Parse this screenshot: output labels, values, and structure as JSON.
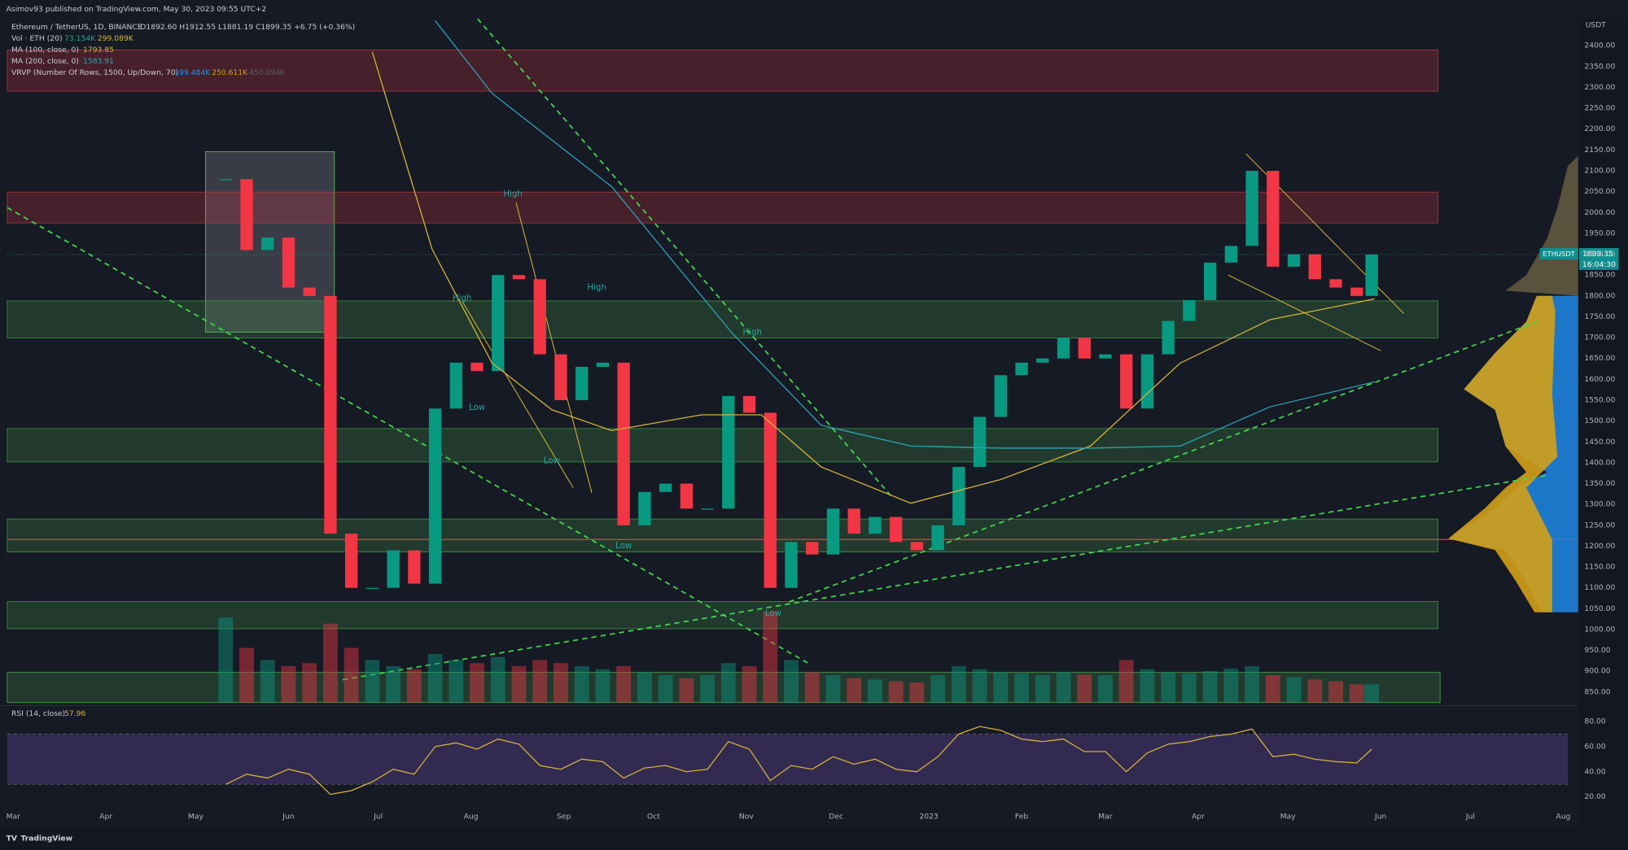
{
  "header": {
    "published": "Asimov93 published on TradingView.com, May 30, 2023 09:55 UTC+2",
    "symbol": "Ethereum / TetherUS, 1D, BINANCE",
    "ohlc": "O1892.60 H1912.55 L1881.19 C1899.35 +6.75 (+0.36%)",
    "vol_name": "Vol · ETH (20)",
    "vol_value": "73.154K",
    "vol_ma": "299.089K",
    "ma100_name": "MA (100, close, 0)",
    "ma100_value": "1793.85",
    "ma200_name": "MA (200, close, 0)",
    "ma200_value": "1583.91",
    "vrvp_name": "VRVP (Number Of Rows, 1500, Up/Down, 70)",
    "vrvp_up": "199.484K",
    "vrvp_down": "250.611K",
    "vrvp_total": "450.094K",
    "currency": "USDT",
    "ticker": "ETHUSDT",
    "countdown": "16:04:30",
    "brand": "TradingView"
  },
  "chart_data": {
    "type": "candlestick",
    "x": [
      71,
      78,
      85,
      92,
      99,
      106,
      113,
      120,
      127,
      134,
      141,
      148,
      155,
      162,
      169,
      176,
      183,
      190,
      197,
      204,
      211,
      218,
      225,
      232,
      239,
      246,
      253,
      260,
      267,
      274,
      281,
      288,
      295,
      302,
      309,
      316,
      323,
      330,
      337,
      344,
      351,
      358,
      365,
      372,
      379,
      386,
      393,
      400,
      407,
      414,
      421,
      428,
      435,
      442,
      449,
      454
    ],
    "close": [
      2080,
      1910,
      1940,
      1820,
      1800,
      1230,
      1100,
      1100,
      1190,
      1110,
      1530,
      1640,
      1620,
      1850,
      1840,
      1660,
      1550,
      1630,
      1640,
      1250,
      1330,
      1350,
      1290,
      1290,
      1560,
      1520,
      1100,
      1210,
      1180,
      1290,
      1230,
      1270,
      1210,
      1190,
      1250,
      1390,
      1510,
      1610,
      1640,
      1650,
      1700,
      1650,
      1660,
      1530,
      1660,
      1740,
      1790,
      1880,
      1920,
      2100,
      1870,
      1900,
      1840,
      1820,
      1800,
      1899.35
    ],
    "volume": [
      1400,
      900,
      700,
      600,
      650,
      1300,
      900,
      700,
      600,
      550,
      800,
      700,
      650,
      750,
      600,
      700,
      650,
      600,
      550,
      600,
      500,
      450,
      400,
      450,
      650,
      600,
      1500,
      700,
      500,
      450,
      400,
      380,
      350,
      330,
      450,
      600,
      550,
      500,
      480,
      450,
      500,
      460,
      450,
      700,
      550,
      500,
      480,
      520,
      560,
      600,
      450,
      420,
      380,
      350,
      300,
      300
    ],
    "up_color": "#089981",
    "down_color": "#f23645",
    "vlim": [
      0,
      2000
    ],
    "series": [
      {
        "name": "MA (100, close, 0)",
        "color": "#d4b53a",
        "x": [
          120,
          140,
          160,
          180,
          200,
          230,
          250,
          270,
          300,
          330,
          360,
          390,
          420,
          455
        ],
        "values": [
          2385,
          1912,
          1639,
          1527,
          1477,
          1515,
          1515,
          1390,
          1303,
          1360,
          1440,
          1639,
          1743,
          1793
        ]
      },
      {
        "name": "MA (200, close, 0)",
        "color": "#2fa3b5",
        "x": [
          141,
          160,
          200,
          240,
          270,
          300,
          330,
          360,
          390,
          420,
          455
        ],
        "values": [
          2460,
          2286,
          2062,
          1713,
          1490,
          1440,
          1435,
          1435,
          1440,
          1534,
          1594
        ]
      }
    ],
    "zones": [
      {
        "low": 2291,
        "high": 2390,
        "color": "red"
      },
      {
        "low": 1975,
        "high": 2049,
        "color": "red"
      },
      {
        "low": 1699,
        "high": 1788,
        "color": "green"
      },
      {
        "low": 1402,
        "high": 1482,
        "color": "green"
      },
      {
        "low": 1186,
        "high": 1265,
        "color": "green"
      },
      {
        "low": 1002,
        "high": 1067,
        "color": "green"
      }
    ],
    "hline": 1216,
    "annotations": [
      {
        "text": "High",
        "x": 150,
        "y": 1795
      },
      {
        "text": "High",
        "x": 167,
        "y": 2044
      },
      {
        "text": "High",
        "x": 195,
        "y": 1820
      },
      {
        "text": "High",
        "x": 247,
        "y": 1713
      },
      {
        "text": "Low",
        "x": 155,
        "y": 1532
      },
      {
        "text": "Low",
        "x": 180,
        "y": 1405
      },
      {
        "text": "Low",
        "x": 204,
        "y": 1201
      },
      {
        "text": "Low",
        "x": 254,
        "y": 1039
      }
    ],
    "xlim": [
      -2,
      523
    ],
    "xticks": [
      {
        "value": 0,
        "label": "Mar"
      },
      {
        "value": 31,
        "label": "Apr"
      },
      {
        "value": 61,
        "label": "May"
      },
      {
        "value": 92,
        "label": "Jun"
      },
      {
        "value": 122,
        "label": "Jul"
      },
      {
        "value": 153,
        "label": "Aug"
      },
      {
        "value": 184,
        "label": "Sep"
      },
      {
        "value": 214,
        "label": "Oct"
      },
      {
        "value": 245,
        "label": "Nov"
      },
      {
        "value": 275,
        "label": "Dec"
      },
      {
        "value": 306,
        "label": "2023"
      },
      {
        "value": 337,
        "label": "Feb"
      },
      {
        "value": 365,
        "label": "Mar"
      },
      {
        "value": 396,
        "label": "Apr"
      },
      {
        "value": 426,
        "label": "May"
      },
      {
        "value": 457,
        "label": "Jun"
      },
      {
        "value": 487,
        "label": "Jul"
      },
      {
        "value": 518,
        "label": "Aug"
      }
    ],
    "ylim": [
      825,
      2467
    ],
    "yticks": [
      {
        "value": 850,
        "label": "850.00"
      },
      {
        "value": 900,
        "label": "900.00"
      },
      {
        "value": 950,
        "label": "950.00"
      },
      {
        "value": 1000,
        "label": "1000.00"
      },
      {
        "value": 1050,
        "label": "1050.00"
      },
      {
        "value": 1100,
        "label": "1100.00"
      },
      {
        "value": 1150,
        "label": "1150.00"
      },
      {
        "value": 1200,
        "label": "1200.00"
      },
      {
        "value": 1250,
        "label": "1250.00"
      },
      {
        "value": 1300,
        "label": "1300.00"
      },
      {
        "value": 1350,
        "label": "1350.00"
      },
      {
        "value": 1400,
        "label": "1400.00"
      },
      {
        "value": 1450,
        "label": "1450.00"
      },
      {
        "value": 1500,
        "label": "1500.00"
      },
      {
        "value": 1550,
        "label": "1550.00"
      },
      {
        "value": 1600,
        "label": "1600.00"
      },
      {
        "value": 1650,
        "label": "1650.00"
      },
      {
        "value": 1700,
        "label": "1700.00"
      },
      {
        "value": 1750,
        "label": "1750.00"
      },
      {
        "value": 1800,
        "label": "1800.00"
      },
      {
        "value": 1850,
        "label": "1850.00"
      },
      {
        "value": 1900,
        "label": "1900.00"
      },
      {
        "value": 1950,
        "label": "1950.00"
      },
      {
        "value": 2000,
        "label": "2000.00"
      },
      {
        "value": 2050,
        "label": "2050.00"
      },
      {
        "value": 2100,
        "label": "2100.00"
      },
      {
        "value": 2150,
        "label": "2150.00"
      },
      {
        "value": 2200,
        "label": "2200.00"
      },
      {
        "value": 2250,
        "label": "2250.00"
      },
      {
        "value": 2300,
        "label": "2300.00"
      },
      {
        "value": 2350,
        "label": "2350.00"
      },
      {
        "value": 2400,
        "label": "2400.00"
      }
    ]
  },
  "rsi": {
    "name": "RSI (14, close)",
    "color": "#d4b53a",
    "values": [
      30,
      38,
      35,
      42,
      38,
      22,
      25,
      32,
      42,
      38,
      60,
      63,
      58,
      66,
      62,
      45,
      42,
      50,
      48,
      35,
      43,
      45,
      40,
      42,
      64,
      58,
      33,
      45,
      42,
      52,
      46,
      50,
      42,
      40,
      52,
      70,
      76,
      73,
      66,
      64,
      66,
      56,
      56,
      40,
      55,
      62,
      64,
      68,
      70,
      74,
      52,
      54,
      50,
      48,
      47,
      57.96
    ],
    "ylim": [
      10,
      91
    ],
    "band": [
      30,
      70
    ],
    "yticks": [
      {
        "value": 20,
        "label": "20.00"
      },
      {
        "value": 40,
        "label": "40.00"
      },
      {
        "value": 60,
        "label": "60.00"
      },
      {
        "value": 80,
        "label": "80.00"
      }
    ]
  }
}
